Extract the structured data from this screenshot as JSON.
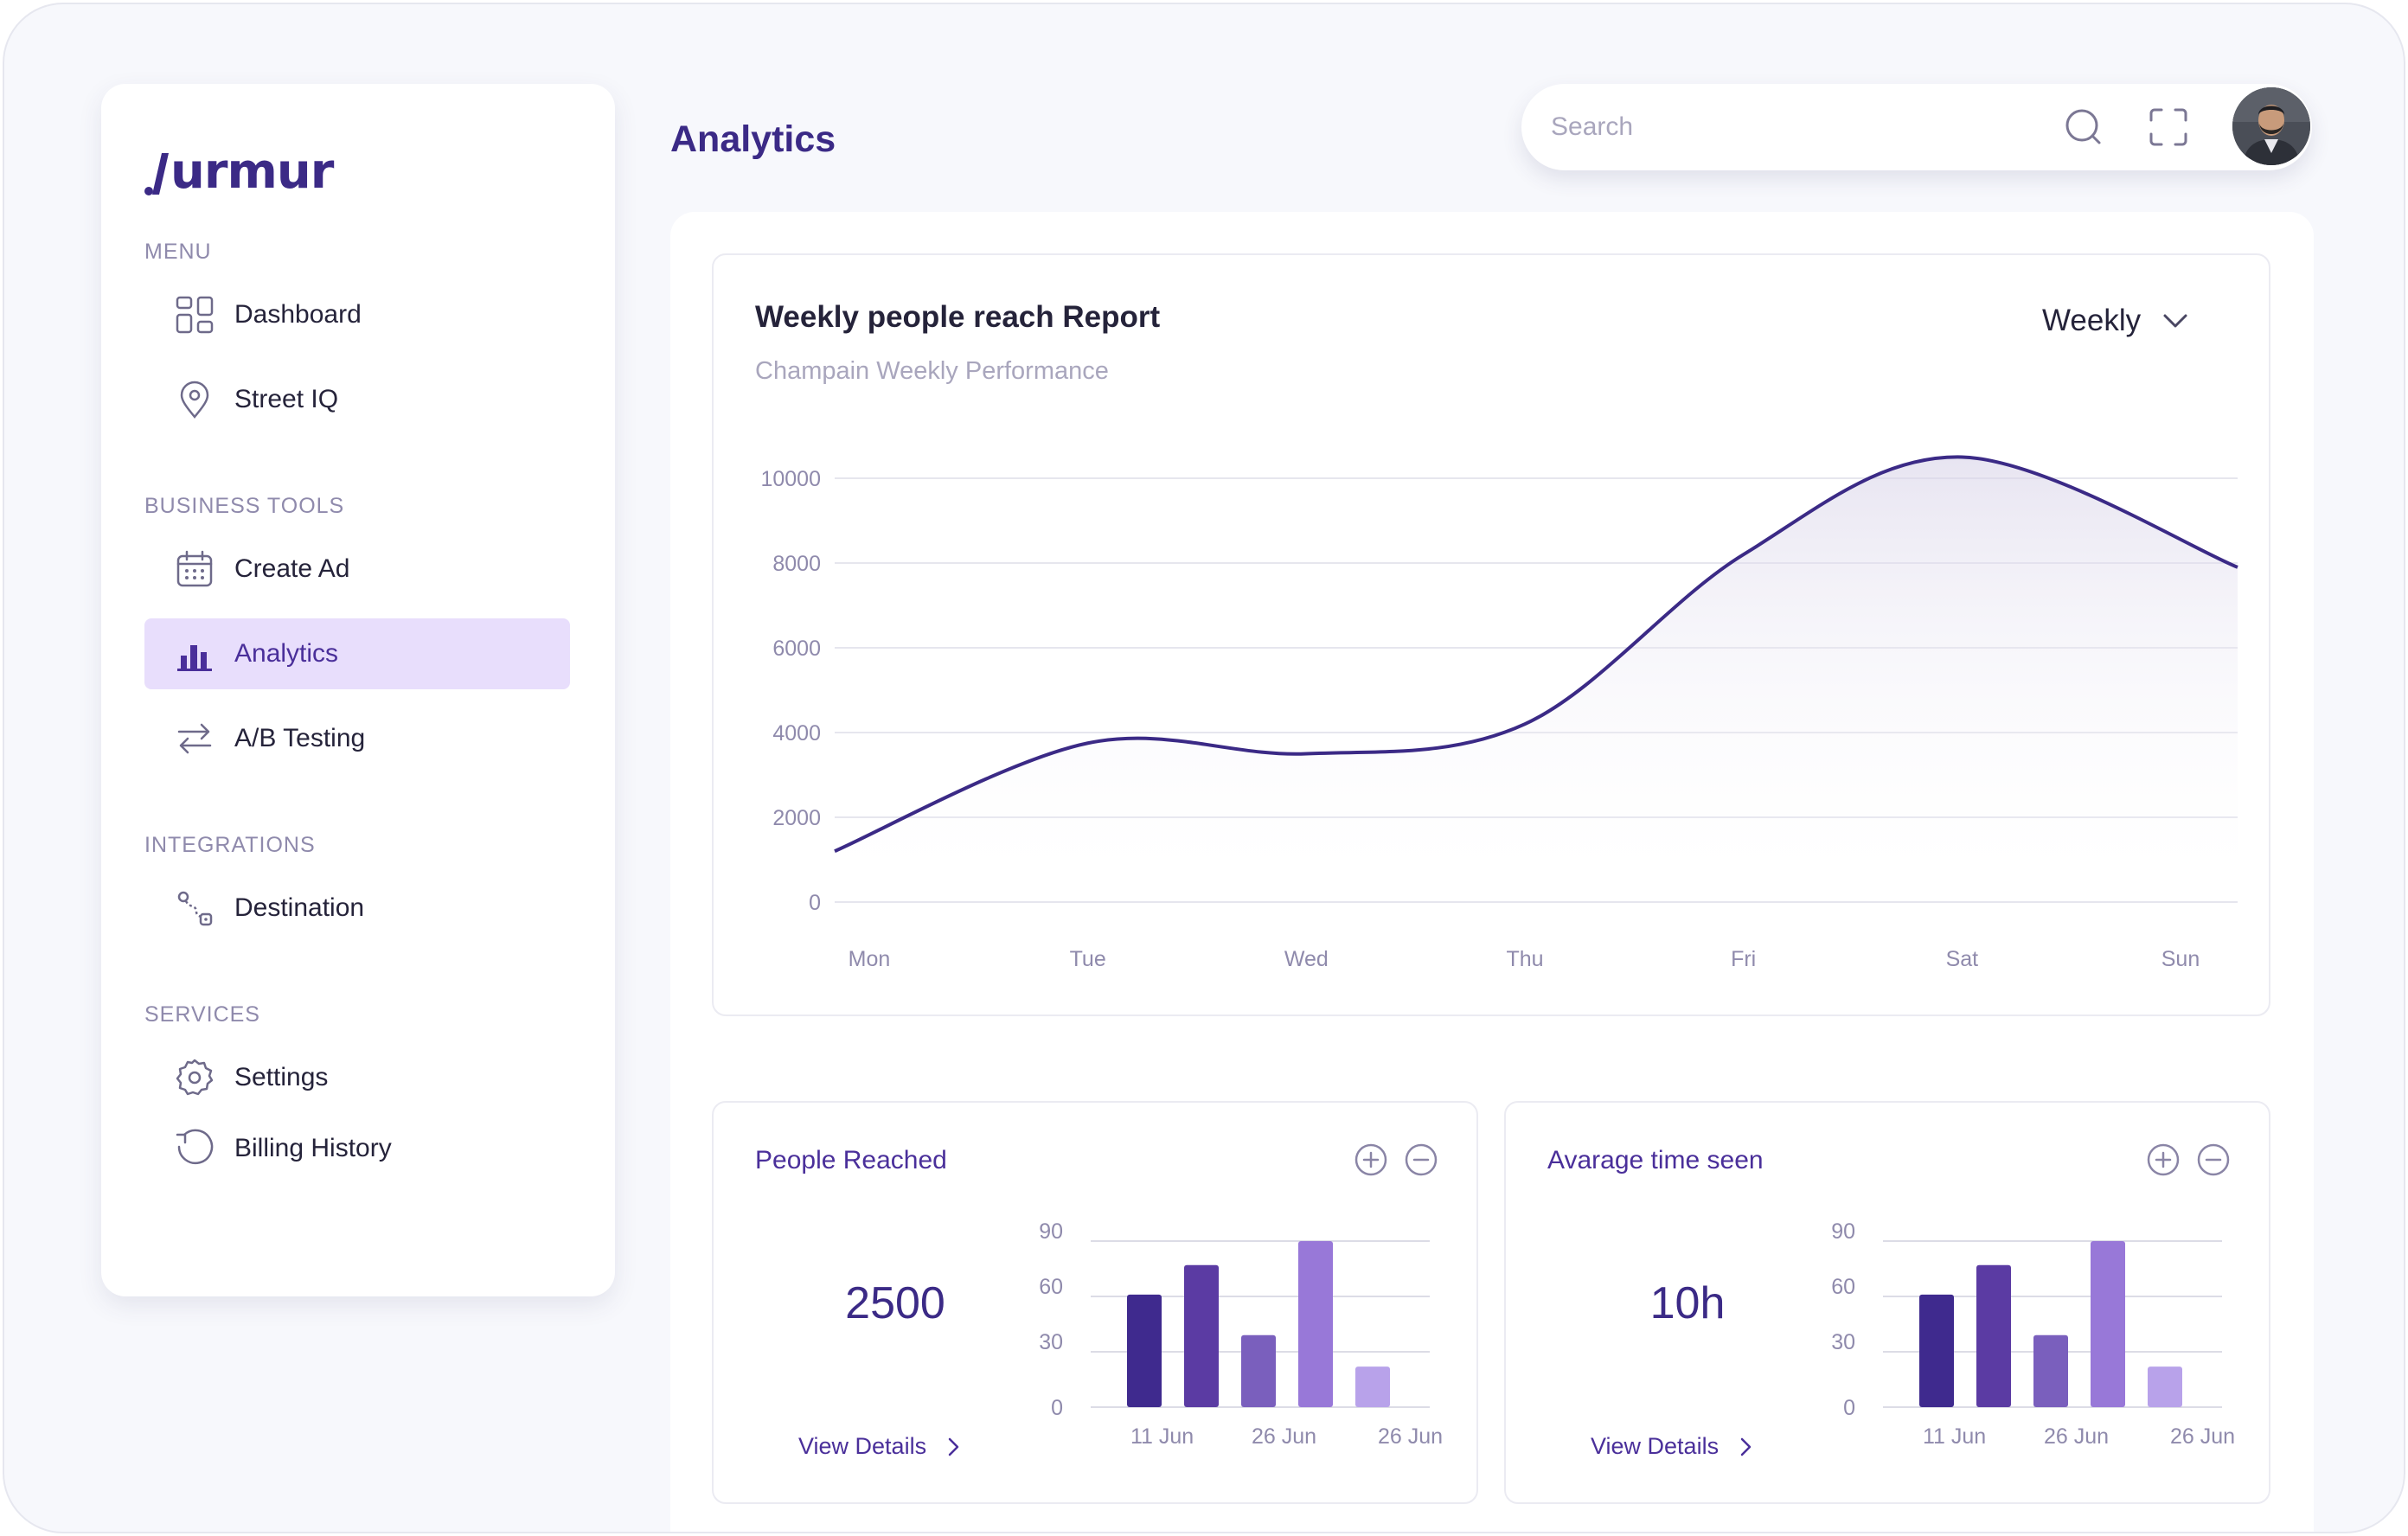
{
  "app": {
    "brand": "urmur",
    "page_title": "Analytics"
  },
  "sidebar": {
    "sections": [
      {
        "label": "MENU",
        "items": [
          {
            "label": "Dashboard",
            "icon": "dashboard-icon"
          },
          {
            "label": "Street IQ",
            "icon": "location-pin-icon"
          }
        ]
      },
      {
        "label": "BUSINESS TOOLS",
        "items": [
          {
            "label": "Create Ad",
            "icon": "calendar-icon"
          },
          {
            "label": "Analytics",
            "icon": "bar-chart-icon",
            "active": true
          },
          {
            "label": "A/B Testing",
            "icon": "swap-arrows-icon"
          }
        ]
      },
      {
        "label": "INTEGRATIONS",
        "items": [
          {
            "label": "Destination",
            "icon": "route-icon"
          }
        ]
      },
      {
        "label": "SERVICES",
        "items": [
          {
            "label": "Settings",
            "icon": "gear-icon"
          },
          {
            "label": "Billing History",
            "icon": "history-icon"
          }
        ]
      }
    ]
  },
  "header": {
    "search_placeholder": "Search"
  },
  "main_chart": {
    "title": "Weekly people reach Report",
    "subtitle": "Champain Weekly Performance",
    "period": "Weekly"
  },
  "stat_cards": [
    {
      "title": "People Reached",
      "value": "2500",
      "link": "View Details"
    },
    {
      "title": "Avarage time seen",
      "value": "10h",
      "link": "View Details"
    }
  ],
  "colors": {
    "brand": "#3b2a86",
    "active_bg": "#e8defc",
    "bar_shades": [
      "#3f2a8e",
      "#5b3ba3",
      "#7a5fbd",
      "#9878d8",
      "#b8a2ea"
    ]
  },
  "chart_data": [
    {
      "type": "area",
      "title": "Weekly people reach Report",
      "subtitle": "Champain Weekly Performance",
      "categories": [
        "Mon",
        "Tue",
        "Wed",
        "Thu",
        "Fri",
        "Sat",
        "Sun"
      ],
      "y_ticks": [
        0,
        2000,
        4000,
        6000,
        8000,
        10000
      ],
      "ylim": [
        0,
        10000
      ],
      "grid": true,
      "series": [
        {
          "values": [
            1200,
            3750,
            3500,
            4200,
            8200,
            10500,
            7900
          ]
        }
      ]
    },
    {
      "type": "bar",
      "title": "People Reached",
      "x_labels": [
        "11 Jun",
        "26 Jun",
        "26 Jun"
      ],
      "y_ticks": [
        0,
        30,
        60,
        90
      ],
      "ylim": [
        0,
        90
      ],
      "values": [
        61,
        77,
        39,
        90,
        22
      ]
    },
    {
      "type": "bar",
      "title": "Avarage time seen",
      "x_labels": [
        "11 Jun",
        "26 Jun",
        "26 Jun"
      ],
      "y_ticks": [
        0,
        30,
        60,
        90
      ],
      "ylim": [
        0,
        90
      ],
      "values": [
        61,
        77,
        39,
        90,
        22
      ]
    }
  ]
}
